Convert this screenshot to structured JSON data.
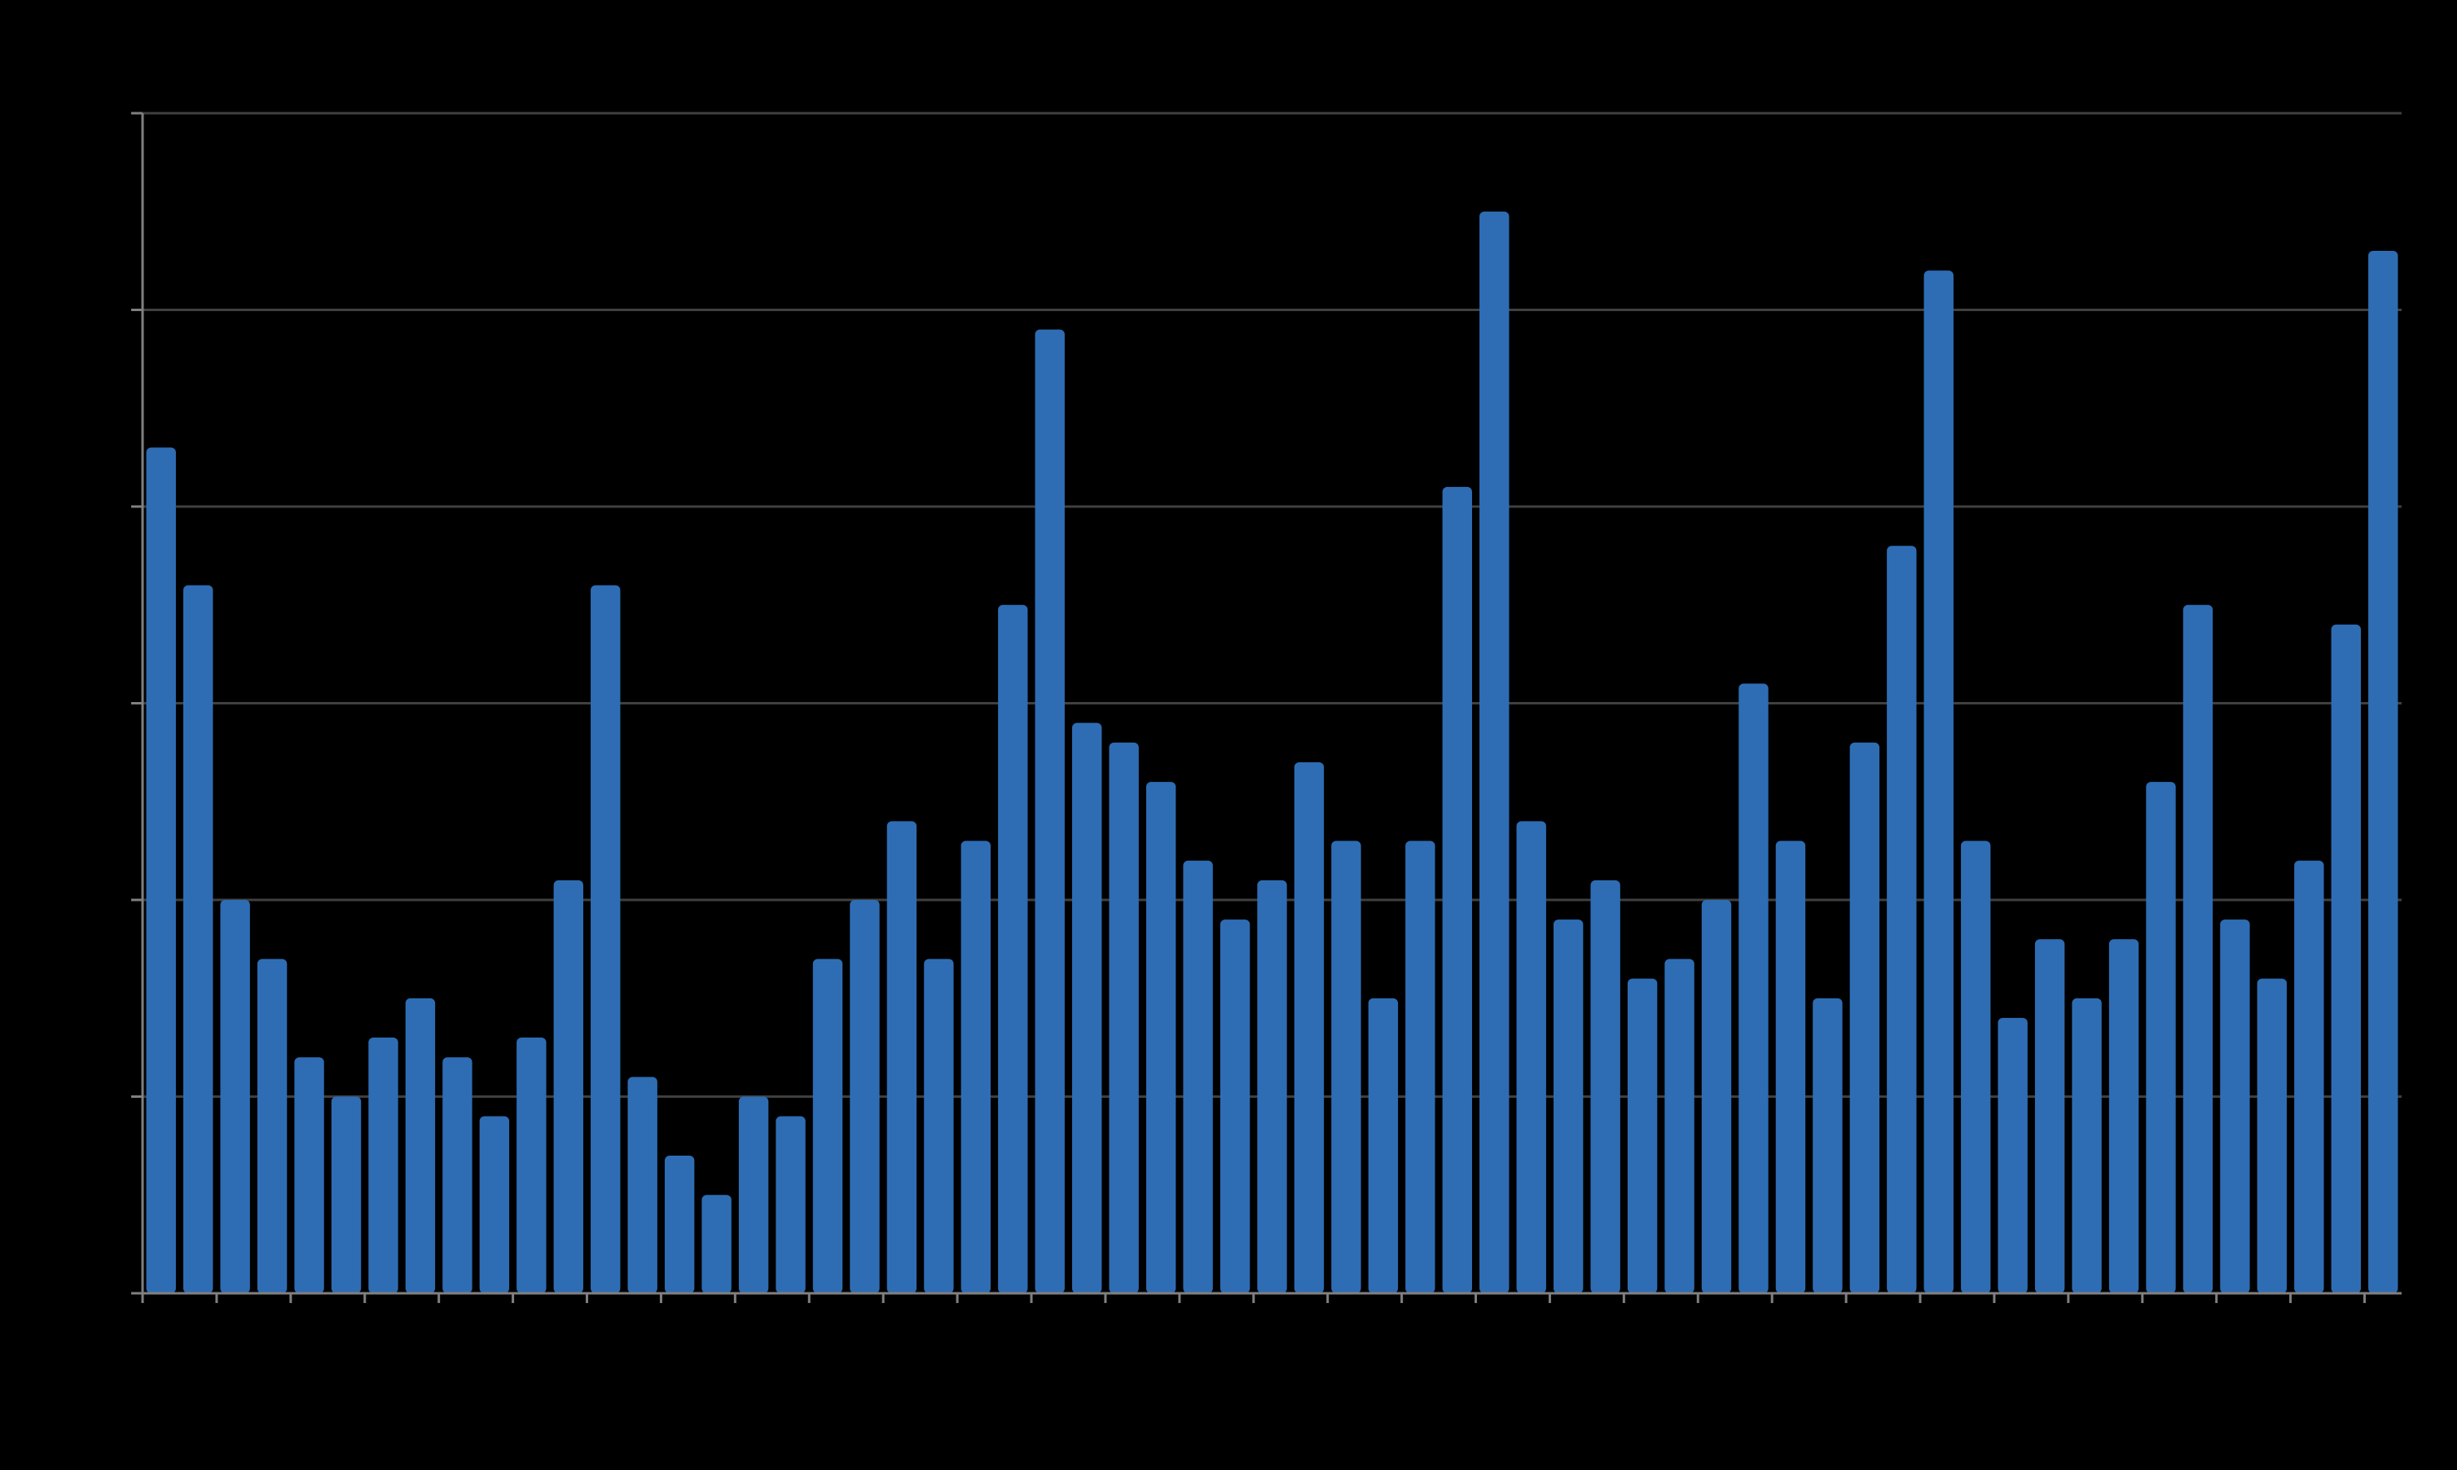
{
  "chart_data": {
    "type": "bar",
    "title": "",
    "xlabel": "",
    "ylabel": "",
    "ylim": [
      0,
      60
    ],
    "y_gridlines": [
      10,
      20,
      30,
      40,
      50,
      60
    ],
    "grid": true,
    "legend": "none",
    "colors": {
      "background": "#000000",
      "bar": "#2E6DB4",
      "grid": "#404040",
      "axis": "#808080"
    },
    "values": [
      43,
      36,
      20,
      17,
      12,
      10,
      13,
      15,
      12,
      9,
      13,
      21,
      36,
      11,
      7,
      5,
      10,
      9,
      17,
      20,
      24,
      17,
      23,
      35,
      49,
      29,
      28,
      26,
      22,
      19,
      21,
      27,
      23,
      15,
      23,
      41,
      55,
      24,
      19,
      21,
      16,
      17,
      20,
      31,
      23,
      15,
      28,
      38,
      52,
      23,
      14,
      18,
      15,
      18,
      26,
      35,
      19,
      16,
      22,
      34,
      53
    ]
  }
}
